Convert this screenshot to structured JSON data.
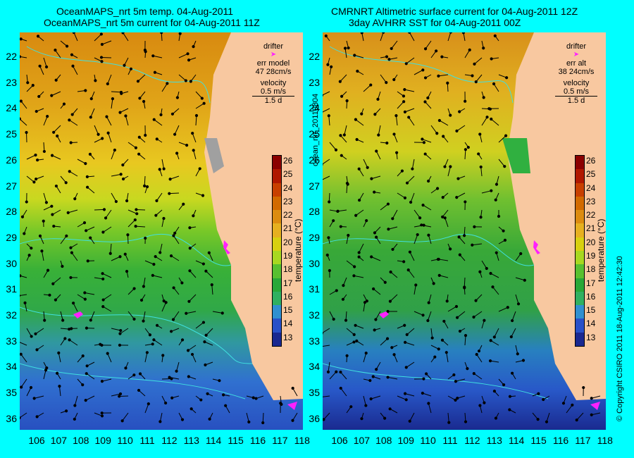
{
  "left_panel": {
    "title_line1": "OceanMAPS_nrt 5m temp. 04-Aug-2011",
    "title_line2": "OceanMAPS_nrt 5m current for 04-Aug-2011 11Z",
    "legend": {
      "drifter": "drifter",
      "err_label": "err model",
      "err_value": "47 28cm/s",
      "velocity": "velocity",
      "velocity_scale": "0.5 m/s",
      "duration": "1.5 d"
    }
  },
  "right_panel": {
    "title_line1": "CMRNRT Altimetric surface current for 04-Aug-2011 12Z",
    "title_line2": "3day AVHRR SST for 04-Aug-2011 00Z",
    "legend": {
      "drifter": "drifter",
      "err_label": "err alt",
      "err_value": "38 24cm/s",
      "velocity": "velocity",
      "velocity_scale": "0.5 m/s",
      "duration": "1.5 d"
    }
  },
  "axes": {
    "latitudes": [
      "22",
      "23",
      "24",
      "25",
      "26",
      "27",
      "28",
      "29",
      "30",
      "31",
      "32",
      "33",
      "34",
      "35",
      "36"
    ],
    "longitudes": [
      "106",
      "107",
      "108",
      "109",
      "110",
      "111",
      "112",
      "113",
      "114",
      "115",
      "116",
      "117",
      "118"
    ]
  },
  "colorbar": {
    "label": "temperature (°C)",
    "ticks": [
      "26",
      "25",
      "24",
      "23",
      "22",
      "21",
      "20",
      "19",
      "18",
      "17",
      "16",
      "15",
      "14",
      "13"
    ],
    "colors": [
      "#8b0000",
      "#b01800",
      "#c84000",
      "#d26a00",
      "#dc8c10",
      "#e6b020",
      "#d8d010",
      "#a8d820",
      "#58c030",
      "#28a838",
      "#30b060",
      "#3090d0",
      "#2850c8",
      "#1a2890"
    ]
  },
  "side_label": "ocean_nrt_20110804",
  "copyright": "© Copyright CSIRO 2011   18-Aug-2011 12:42:30",
  "colors": {
    "background": "#00ffff",
    "land": "#f8c8a0",
    "drifter": "#ff20ff",
    "contour": "#40e0e0"
  }
}
